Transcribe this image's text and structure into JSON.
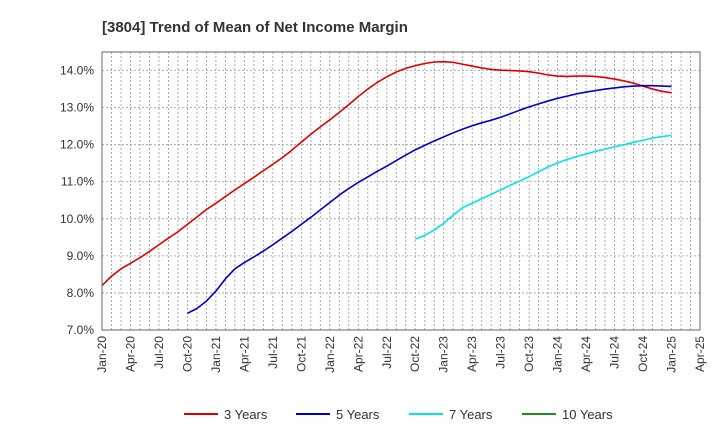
{
  "chart_data": {
    "type": "line",
    "title": "[3804]  Trend of Mean of Net Income Margin",
    "xlabel": "",
    "ylabel": "",
    "ylim": [
      7.0,
      14.5
    ],
    "xlim": [
      "2020-01",
      "2025-04"
    ],
    "y_ticks": [
      7.0,
      8.0,
      9.0,
      10.0,
      11.0,
      12.0,
      13.0,
      14.0
    ],
    "y_tick_labels": [
      "7.0%",
      "8.0%",
      "9.0%",
      "10.0%",
      "11.0%",
      "12.0%",
      "13.0%",
      "14.0%"
    ],
    "x_ticks": [
      "2020-01",
      "2020-04",
      "2020-07",
      "2020-10",
      "2021-01",
      "2021-04",
      "2021-07",
      "2021-10",
      "2022-01",
      "2022-04",
      "2022-07",
      "2022-10",
      "2023-01",
      "2023-04",
      "2023-07",
      "2023-10",
      "2024-01",
      "2024-04",
      "2024-07",
      "2024-10",
      "2025-01",
      "2025-04"
    ],
    "x_tick_labels": [
      "Jan-20",
      "Apr-20",
      "Jul-20",
      "Oct-20",
      "Jan-21",
      "Apr-21",
      "Jul-21",
      "Oct-21",
      "Jan-22",
      "Apr-22",
      "Jul-22",
      "Oct-22",
      "Jan-23",
      "Apr-23",
      "Jul-23",
      "Oct-23",
      "Jan-24",
      "Apr-24",
      "Jul-24",
      "Oct-24",
      "Jan-25",
      "Apr-25"
    ],
    "grid": true,
    "legend_position": "bottom",
    "series": [
      {
        "name": "3 Years",
        "color": "#e00000",
        "points": [
          [
            "2020-01",
            8.2
          ],
          [
            "2020-02",
            8.45
          ],
          [
            "2020-03",
            8.65
          ],
          [
            "2020-04",
            8.8
          ],
          [
            "2020-05",
            8.95
          ],
          [
            "2020-06",
            9.12
          ],
          [
            "2020-07",
            9.3
          ],
          [
            "2020-08",
            9.48
          ],
          [
            "2020-09",
            9.65
          ],
          [
            "2020-10",
            9.85
          ],
          [
            "2020-11",
            10.05
          ],
          [
            "2020-12",
            10.25
          ],
          [
            "2021-01",
            10.42
          ],
          [
            "2021-02",
            10.6
          ],
          [
            "2021-03",
            10.78
          ],
          [
            "2021-04",
            10.95
          ],
          [
            "2021-05",
            11.12
          ],
          [
            "2021-06",
            11.3
          ],
          [
            "2021-07",
            11.47
          ],
          [
            "2021-08",
            11.65
          ],
          [
            "2021-09",
            11.85
          ],
          [
            "2021-10",
            12.07
          ],
          [
            "2021-11",
            12.28
          ],
          [
            "2021-12",
            12.48
          ],
          [
            "2022-01",
            12.67
          ],
          [
            "2022-02",
            12.87
          ],
          [
            "2022-03",
            13.08
          ],
          [
            "2022-04",
            13.3
          ],
          [
            "2022-05",
            13.5
          ],
          [
            "2022-06",
            13.68
          ],
          [
            "2022-07",
            13.83
          ],
          [
            "2022-08",
            13.96
          ],
          [
            "2022-09",
            14.06
          ],
          [
            "2022-10",
            14.13
          ],
          [
            "2022-11",
            14.19
          ],
          [
            "2022-12",
            14.23
          ],
          [
            "2023-01",
            14.24
          ],
          [
            "2023-02",
            14.22
          ],
          [
            "2023-03",
            14.17
          ],
          [
            "2023-04",
            14.12
          ],
          [
            "2023-05",
            14.07
          ],
          [
            "2023-06",
            14.03
          ],
          [
            "2023-07",
            14.01
          ],
          [
            "2023-08",
            14.0
          ],
          [
            "2023-09",
            13.99
          ],
          [
            "2023-10",
            13.97
          ],
          [
            "2023-11",
            13.93
          ],
          [
            "2023-12",
            13.88
          ],
          [
            "2024-01",
            13.85
          ],
          [
            "2024-02",
            13.84
          ],
          [
            "2024-03",
            13.85
          ],
          [
            "2024-04",
            13.85
          ],
          [
            "2024-05",
            13.84
          ],
          [
            "2024-06",
            13.81
          ],
          [
            "2024-07",
            13.77
          ],
          [
            "2024-08",
            13.72
          ],
          [
            "2024-09",
            13.66
          ],
          [
            "2024-10",
            13.58
          ],
          [
            "2024-11",
            13.5
          ],
          [
            "2024-12",
            13.44
          ],
          [
            "2025-01",
            13.4
          ]
        ]
      },
      {
        "name": "5 Years",
        "color": "#0000cc",
        "points": [
          [
            "2020-10",
            7.45
          ],
          [
            "2020-11",
            7.58
          ],
          [
            "2020-12",
            7.78
          ],
          [
            "2021-01",
            8.05
          ],
          [
            "2021-02",
            8.38
          ],
          [
            "2021-03",
            8.65
          ],
          [
            "2021-04",
            8.82
          ],
          [
            "2021-05",
            8.97
          ],
          [
            "2021-06",
            9.13
          ],
          [
            "2021-07",
            9.3
          ],
          [
            "2021-08",
            9.48
          ],
          [
            "2021-09",
            9.66
          ],
          [
            "2021-10",
            9.85
          ],
          [
            "2021-11",
            10.04
          ],
          [
            "2021-12",
            10.24
          ],
          [
            "2022-01",
            10.44
          ],
          [
            "2022-02",
            10.64
          ],
          [
            "2022-03",
            10.82
          ],
          [
            "2022-04",
            10.98
          ],
          [
            "2022-05",
            11.13
          ],
          [
            "2022-06",
            11.28
          ],
          [
            "2022-07",
            11.42
          ],
          [
            "2022-08",
            11.57
          ],
          [
            "2022-09",
            11.72
          ],
          [
            "2022-10",
            11.86
          ],
          [
            "2022-11",
            11.98
          ],
          [
            "2022-12",
            12.1
          ],
          [
            "2023-01",
            12.21
          ],
          [
            "2023-02",
            12.32
          ],
          [
            "2023-03",
            12.42
          ],
          [
            "2023-04",
            12.51
          ],
          [
            "2023-05",
            12.59
          ],
          [
            "2023-06",
            12.66
          ],
          [
            "2023-07",
            12.74
          ],
          [
            "2023-08",
            12.83
          ],
          [
            "2023-09",
            12.93
          ],
          [
            "2023-10",
            13.02
          ],
          [
            "2023-11",
            13.1
          ],
          [
            "2023-12",
            13.18
          ],
          [
            "2024-01",
            13.25
          ],
          [
            "2024-02",
            13.31
          ],
          [
            "2024-03",
            13.37
          ],
          [
            "2024-04",
            13.42
          ],
          [
            "2024-05",
            13.46
          ],
          [
            "2024-06",
            13.5
          ],
          [
            "2024-07",
            13.53
          ],
          [
            "2024-08",
            13.56
          ],
          [
            "2024-09",
            13.58
          ],
          [
            "2024-10",
            13.59
          ],
          [
            "2024-11",
            13.59
          ],
          [
            "2024-12",
            13.58
          ],
          [
            "2025-01",
            13.57
          ]
        ]
      },
      {
        "name": "7 Years",
        "color": "#00e5e5",
        "points": [
          [
            "2022-10",
            9.45
          ],
          [
            "2022-11",
            9.55
          ],
          [
            "2022-12",
            9.7
          ],
          [
            "2023-01",
            9.88
          ],
          [
            "2023-02",
            10.1
          ],
          [
            "2023-03",
            10.3
          ],
          [
            "2023-04",
            10.42
          ],
          [
            "2023-05",
            10.54
          ],
          [
            "2023-06",
            10.66
          ],
          [
            "2023-07",
            10.78
          ],
          [
            "2023-08",
            10.9
          ],
          [
            "2023-09",
            11.02
          ],
          [
            "2023-10",
            11.14
          ],
          [
            "2023-11",
            11.27
          ],
          [
            "2023-12",
            11.4
          ],
          [
            "2024-01",
            11.51
          ],
          [
            "2024-02",
            11.6
          ],
          [
            "2024-03",
            11.68
          ],
          [
            "2024-04",
            11.75
          ],
          [
            "2024-05",
            11.82
          ],
          [
            "2024-06",
            11.88
          ],
          [
            "2024-07",
            11.94
          ],
          [
            "2024-08",
            12.0
          ],
          [
            "2024-09",
            12.06
          ],
          [
            "2024-10",
            12.12
          ],
          [
            "2024-11",
            12.18
          ],
          [
            "2024-12",
            12.22
          ],
          [
            "2025-01",
            12.25
          ]
        ]
      },
      {
        "name": "10 Years",
        "color": "#228b22",
        "points": []
      }
    ]
  }
}
